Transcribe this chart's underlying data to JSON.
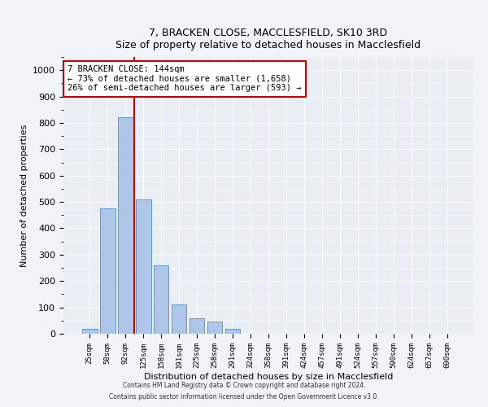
{
  "title1": "7, BRACKEN CLOSE, MACCLESFIELD, SK10 3RD",
  "title2": "Size of property relative to detached houses in Macclesfield",
  "xlabel": "Distribution of detached houses by size in Macclesfield",
  "ylabel": "Number of detached properties",
  "categories": [
    "25sqm",
    "58sqm",
    "92sqm",
    "125sqm",
    "158sqm",
    "191sqm",
    "225sqm",
    "258sqm",
    "291sqm",
    "324sqm",
    "358sqm",
    "391sqm",
    "424sqm",
    "457sqm",
    "491sqm",
    "524sqm",
    "557sqm",
    "590sqm",
    "624sqm",
    "657sqm",
    "690sqm"
  ],
  "values": [
    20,
    475,
    820,
    510,
    260,
    110,
    60,
    45,
    20,
    0,
    0,
    0,
    0,
    0,
    0,
    0,
    0,
    0,
    0,
    0,
    0
  ],
  "bar_color": "#aec6e8",
  "bar_edge_color": "#5b9bd5",
  "vline_color": "#cc0000",
  "annotation_text": "7 BRACKEN CLOSE: 144sqm\n← 73% of detached houses are smaller (1,658)\n26% of semi-detached houses are larger (593) →",
  "annotation_box_color": "#ffffff",
  "annotation_box_edge": "#cc0000",
  "ylim": [
    0,
    1050
  ],
  "yticks": [
    0,
    100,
    200,
    300,
    400,
    500,
    600,
    700,
    800,
    900,
    1000
  ],
  "background_color": "#e8eef4",
  "fig_background_color": "#f0f4f8",
  "footer_line1": "Contains HM Land Registry data © Crown copyright and database right 2024.",
  "footer_line2": "Contains public sector information licensed under the Open Government Licence v3.0."
}
